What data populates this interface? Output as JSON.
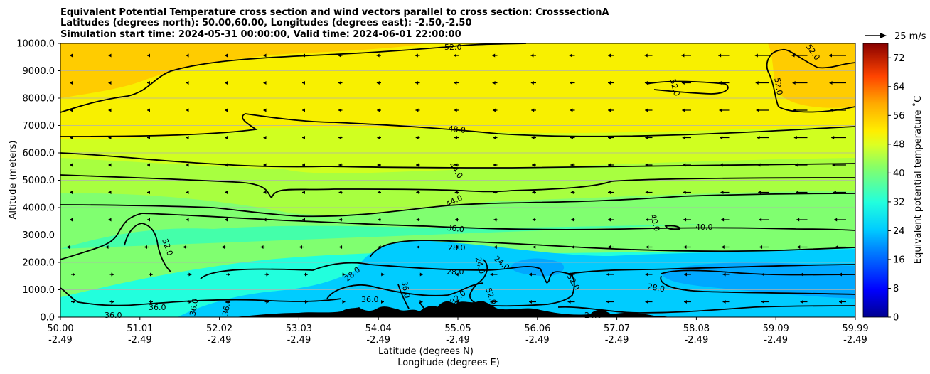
{
  "chart_data": {
    "type": "heatmap",
    "title_lines": [
      "Equivalent Potential Temperature cross section and wind vectors parallel to cross section: CrosssectionA",
      "Latitudes (degrees north): 50.00,60.00, Longitudes (degrees east): -2.50,-2.50",
      "Simulation start time: 2024-05-31 00:00:00, Valid time: 2024-06-01 22:00:00"
    ],
    "ylabel": "Altitude (meters)",
    "xlabel_lat": "Latitude (degrees N)",
    "xlabel_lon": "Longitude (degrees E)",
    "ylim": [
      0,
      10000
    ],
    "yticks": [
      "0.0",
      "1000.0",
      "2000.0",
      "3000.0",
      "4000.0",
      "5000.0",
      "6000.0",
      "7000.0",
      "8000.0",
      "9000.0",
      "10000.0"
    ],
    "xticks_lat": [
      "50.00",
      "51.01",
      "52.02",
      "53.03",
      "54.04",
      "55.05",
      "56.06",
      "57.07",
      "58.08",
      "59.09",
      "59.99"
    ],
    "xticks_lon": [
      "-2.49",
      "-2.49",
      "-2.49",
      "-2.49",
      "-2.49",
      "-2.49",
      "-2.49",
      "-2.49",
      "-2.49",
      "-2.49",
      "-2.49"
    ],
    "colorbar_label": "Equivalent potential temperature ˚C",
    "colorbar_ticks": [
      "0",
      "8",
      "16",
      "24",
      "32",
      "40",
      "48",
      "56",
      "64",
      "72"
    ],
    "colorbar_range": [
      0,
      76
    ],
    "quiver_key_label": "25 m/s",
    "contour_labels": [
      "52.0",
      "52.0",
      "52.0",
      "52.0",
      "48.0",
      "44.0",
      "44.0",
      "40.0",
      "40.0",
      "36.0",
      "32.0",
      "28.0",
      "28.0",
      "28.0",
      "28.0",
      "24.0",
      "24.0",
      "24.0",
      "32.0",
      "32.0",
      "52.0",
      "36.0",
      "36.0",
      "36.0",
      "36.0",
      "36.0",
      "36.0"
    ],
    "colors": {
      "band_yellow": "#f8f000",
      "band_orange": "#ffcc00",
      "band_yellowgreen": "#d0ff20",
      "band_lightgreen": "#a8ff40",
      "band_green": "#80ff70",
      "band_seagreen": "#44ffaa",
      "band_cyan": "#22ffdd",
      "band_sky": "#00ccff",
      "band_blue": "#00a8ff",
      "terrain": "#000000"
    }
  }
}
